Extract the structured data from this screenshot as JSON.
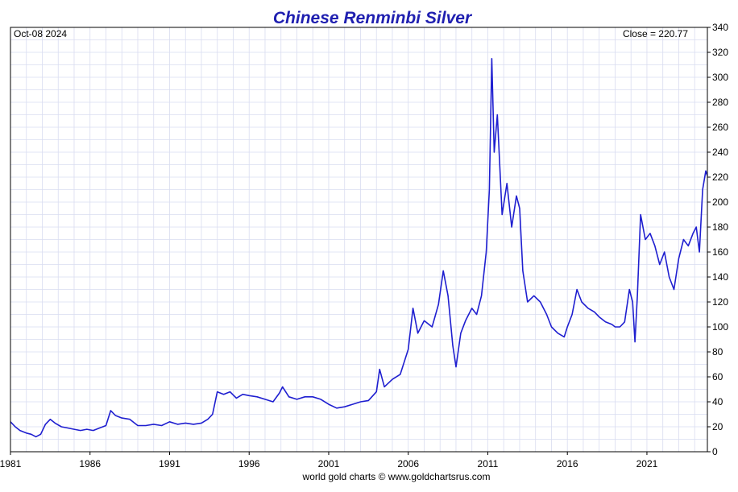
{
  "chart_data": {
    "type": "line",
    "title": "Chinese Renminbi Silver",
    "date_label": "Oct-08  2024",
    "close_label": "Close = 220.77",
    "footer": "world gold charts © www.goldchartsrus.com",
    "xlabel": "",
    "ylabel": "",
    "x_ticks": [
      "1981",
      "1986",
      "1991",
      "1996",
      "2001",
      "2006",
      "2011",
      "2016",
      "2021"
    ],
    "y_ticks": [
      0,
      20,
      40,
      60,
      80,
      100,
      120,
      140,
      160,
      180,
      200,
      220,
      240,
      260,
      280,
      300,
      320,
      340
    ],
    "xlim": [
      1981.0,
      2024.8
    ],
    "ylim": [
      0,
      340
    ],
    "grid": true,
    "series": [
      {
        "color": "#1f1fd0",
        "x": [
          1981.0,
          1981.3,
          1981.6,
          1982.0,
          1982.3,
          1982.6,
          1982.9,
          1983.2,
          1983.5,
          1983.8,
          1984.2,
          1984.6,
          1985.0,
          1985.4,
          1985.8,
          1986.2,
          1986.6,
          1987.0,
          1987.3,
          1987.6,
          1988.0,
          1988.5,
          1989.0,
          1989.5,
          1990.0,
          1990.5,
          1991.0,
          1991.5,
          1992.0,
          1992.5,
          1993.0,
          1993.4,
          1993.7,
          1994.0,
          1994.4,
          1994.8,
          1995.2,
          1995.6,
          1996.0,
          1996.5,
          1997.0,
          1997.5,
          1997.9,
          1998.1,
          1998.5,
          1999.0,
          1999.5,
          2000.0,
          2000.5,
          2001.0,
          2001.5,
          2002.0,
          2002.5,
          2003.0,
          2003.5,
          2004.0,
          2004.2,
          2004.5,
          2005.0,
          2005.5,
          2006.0,
          2006.3,
          2006.6,
          2007.0,
          2007.5,
          2007.9,
          2008.2,
          2008.5,
          2008.8,
          2009.0,
          2009.3,
          2009.6,
          2010.0,
          2010.3,
          2010.6,
          2010.9,
          2011.1,
          2011.25,
          2011.4,
          2011.6,
          2011.9,
          2012.2,
          2012.5,
          2012.8,
          2013.0,
          2013.2,
          2013.5,
          2013.9,
          2014.3,
          2014.7,
          2015.0,
          2015.4,
          2015.8,
          2016.0,
          2016.3,
          2016.6,
          2016.9,
          2017.3,
          2017.7,
          2018.0,
          2018.4,
          2018.8,
          2019.0,
          2019.3,
          2019.6,
          2019.9,
          2020.1,
          2020.25,
          2020.4,
          2020.6,
          2020.9,
          2021.2,
          2021.5,
          2021.8,
          2022.1,
          2022.4,
          2022.7,
          2023.0,
          2023.3,
          2023.6,
          2023.9,
          2024.1,
          2024.3,
          2024.5,
          2024.7,
          2024.8
        ],
        "values": [
          24,
          20,
          17,
          15,
          14,
          12,
          14,
          22,
          26,
          23,
          20,
          19,
          18,
          17,
          18,
          17,
          19,
          21,
          33,
          29,
          27,
          26,
          21,
          21,
          22,
          21,
          24,
          22,
          23,
          22,
          23,
          26,
          30,
          48,
          46,
          48,
          43,
          46,
          45,
          44,
          42,
          40,
          47,
          52,
          44,
          42,
          44,
          44,
          42,
          38,
          35,
          36,
          38,
          40,
          41,
          48,
          66,
          52,
          58,
          62,
          82,
          115,
          95,
          105,
          100,
          118,
          145,
          125,
          85,
          68,
          95,
          105,
          115,
          110,
          125,
          160,
          210,
          315,
          240,
          270,
          190,
          215,
          180,
          205,
          195,
          145,
          120,
          125,
          120,
          110,
          100,
          95,
          92,
          100,
          110,
          130,
          120,
          115,
          112,
          108,
          104,
          102,
          100,
          100,
          104,
          130,
          120,
          88,
          125,
          190,
          170,
          175,
          165,
          150,
          160,
          140,
          130,
          155,
          170,
          165,
          175,
          180,
          160,
          210,
          225,
          221
        ]
      }
    ]
  }
}
